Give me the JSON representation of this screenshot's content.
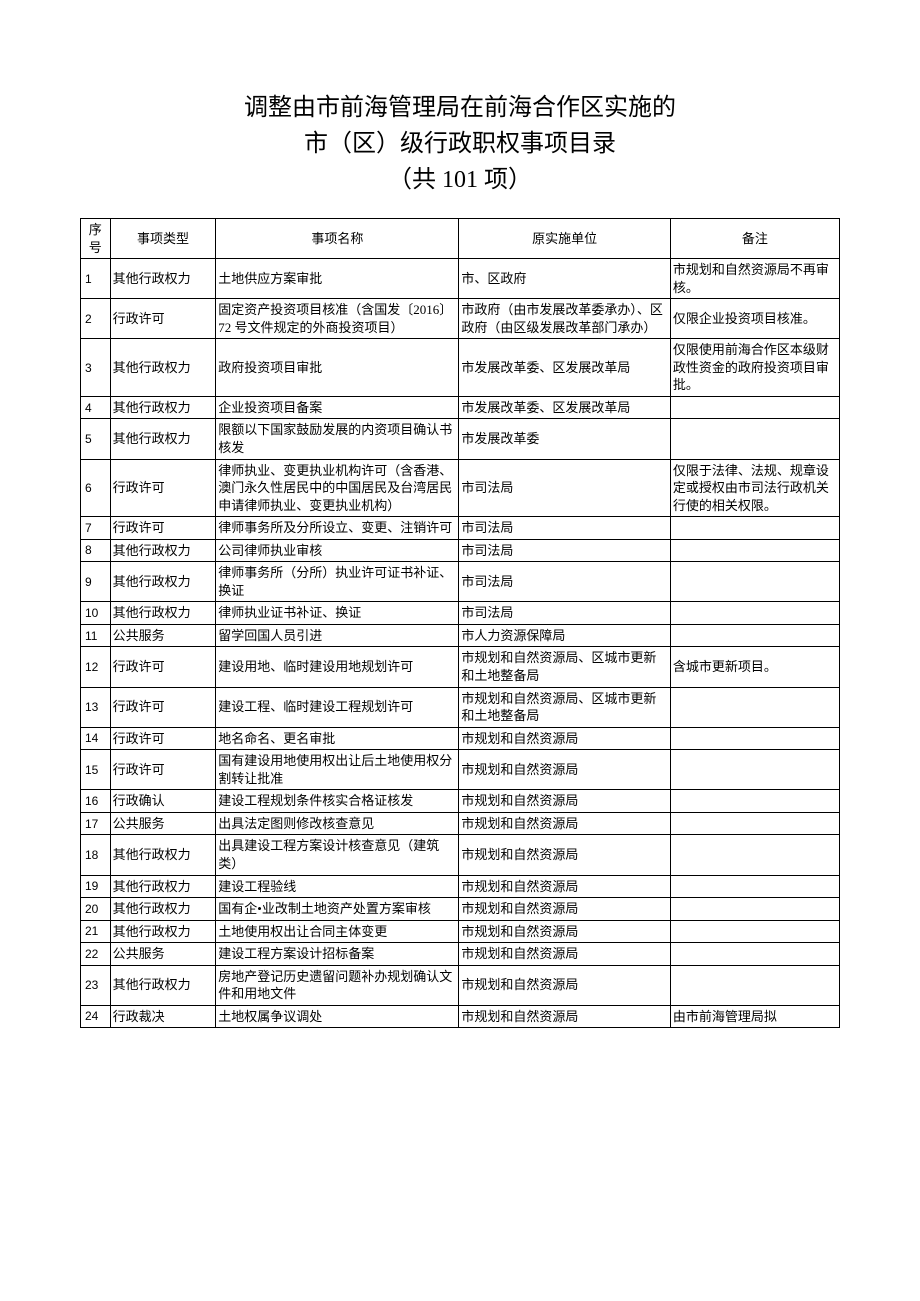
{
  "title": {
    "line1": "调整由市前海管理局在前海合作区实施的",
    "line2": "市（区）级行政职权事项目录",
    "line3": "（共 101 项）"
  },
  "columns": [
    "序号",
    "事项类型",
    "事项名称",
    "原实施单位",
    "备注"
  ],
  "rows": [
    {
      "seq": "1",
      "type": "其他行政权力",
      "name": "土地供应方案审批",
      "unit": "市、区政府",
      "note": "市规划和自然资源局不再审核。"
    },
    {
      "seq": "2",
      "type": "行政许可",
      "name": "固定资产投资项目核准（含国发〔2016〕72 号文件规定的外商投资项目）",
      "unit": "市政府（由市发展改革委承办）、区政府（由区级发展改革部门承办）",
      "note": "仅限企业投资项目核准。"
    },
    {
      "seq": "3",
      "type": "其他行政权力",
      "name": "政府投资项目审批",
      "unit": "市发展改革委、区发展改革局",
      "note": "仅限使用前海合作区本级财政性资金的政府投资项目审批。"
    },
    {
      "seq": "4",
      "type": "其他行政权力",
      "name": "企业投资项目备案",
      "unit": "市发展改革委、区发展改革局",
      "note": ""
    },
    {
      "seq": "5",
      "type": "其他行政权力",
      "name": "限额以下国家鼓励发展的内资项目确认书核发",
      "unit": "市发展改革委",
      "note": ""
    },
    {
      "seq": "6",
      "type": "行政许可",
      "name": "律师执业、变更执业机构许可（含香港、澳门永久性居民中的中国居民及台湾居民申请律师执业、变更执业机构）",
      "unit": "市司法局",
      "note": "仅限于法律、法规、规章设定或授权由市司法行政机关行使的相关权限。"
    },
    {
      "seq": "7",
      "type": "行政许可",
      "name": "律师事务所及分所设立、变更、注销许可",
      "unit": "市司法局",
      "note": ""
    },
    {
      "seq": "8",
      "type": "其他行政权力",
      "name": "公司律师执业审核",
      "unit": "市司法局",
      "note": ""
    },
    {
      "seq": "9",
      "type": "其他行政权力",
      "name": "律师事务所（分所）执业许可证书补证、换证",
      "unit": "市司法局",
      "note": ""
    },
    {
      "seq": "10",
      "type": "其他行政权力",
      "name": "律师执业证书补证、换证",
      "unit": "市司法局",
      "note": ""
    },
    {
      "seq": "11",
      "type": "公共服务",
      "name": "留学回国人员引进",
      "unit": "市人力资源保障局",
      "note": ""
    },
    {
      "seq": "12",
      "type": "行政许可",
      "name": "建设用地、临时建设用地规划许可",
      "unit": "市规划和自然资源局、区城市更新和土地整备局",
      "note": "含城市更新项目。"
    },
    {
      "seq": "13",
      "type": "行政许可",
      "name": "建设工程、临时建设工程规划许可",
      "unit": "市规划和自然资源局、区城市更新和土地整备局",
      "note": ""
    },
    {
      "seq": "14",
      "type": "行政许可",
      "name": "地名命名、更名审批",
      "unit": "市规划和自然资源局",
      "note": ""
    },
    {
      "seq": "15",
      "type": "行政许可",
      "name": "国有建设用地使用权出让后土地使用权分割转让批准",
      "unit": "市规划和自然资源局",
      "note": ""
    },
    {
      "seq": "16",
      "type": "行政确认",
      "name": "建设工程规划条件核实合格证核发",
      "unit": "市规划和自然资源局",
      "note": ""
    },
    {
      "seq": "17",
      "type": "公共服务",
      "name": "出具法定图则修改核查意见",
      "unit": "市规划和自然资源局",
      "note": ""
    },
    {
      "seq": "18",
      "type": "其他行政权力",
      "name": "出具建设工程方案设计核查意见（建筑类）",
      "unit": "市规划和自然资源局",
      "note": ""
    },
    {
      "seq": "19",
      "type": "其他行政权力",
      "name": "建设工程验线",
      "unit": "市规划和自然资源局",
      "note": ""
    },
    {
      "seq": "20",
      "type": "其他行政权力",
      "name": "国有企•业改制土地资产处置方案审核",
      "unit": "市规划和自然资源局",
      "note": ""
    },
    {
      "seq": "21",
      "type": "其他行政权力",
      "name": "土地使用权出让合同主体变更",
      "unit": "市规划和自然资源局",
      "note": ""
    },
    {
      "seq": "22",
      "type": "公共服务",
      "name": "建设工程方案设计招标备案",
      "unit": "市规划和自然资源局",
      "note": ""
    },
    {
      "seq": "23",
      "type": "其他行政权力",
      "name": "房地产登记历史遗留问题补办规划确认文件和用地文件",
      "unit": "市规划和自然资源局",
      "note": ""
    },
    {
      "seq": "24",
      "type": "行政裁决",
      "name": "土地权属争议调处",
      "unit": "市规划和自然资源局",
      "note": "由市前海管理局拟"
    }
  ]
}
